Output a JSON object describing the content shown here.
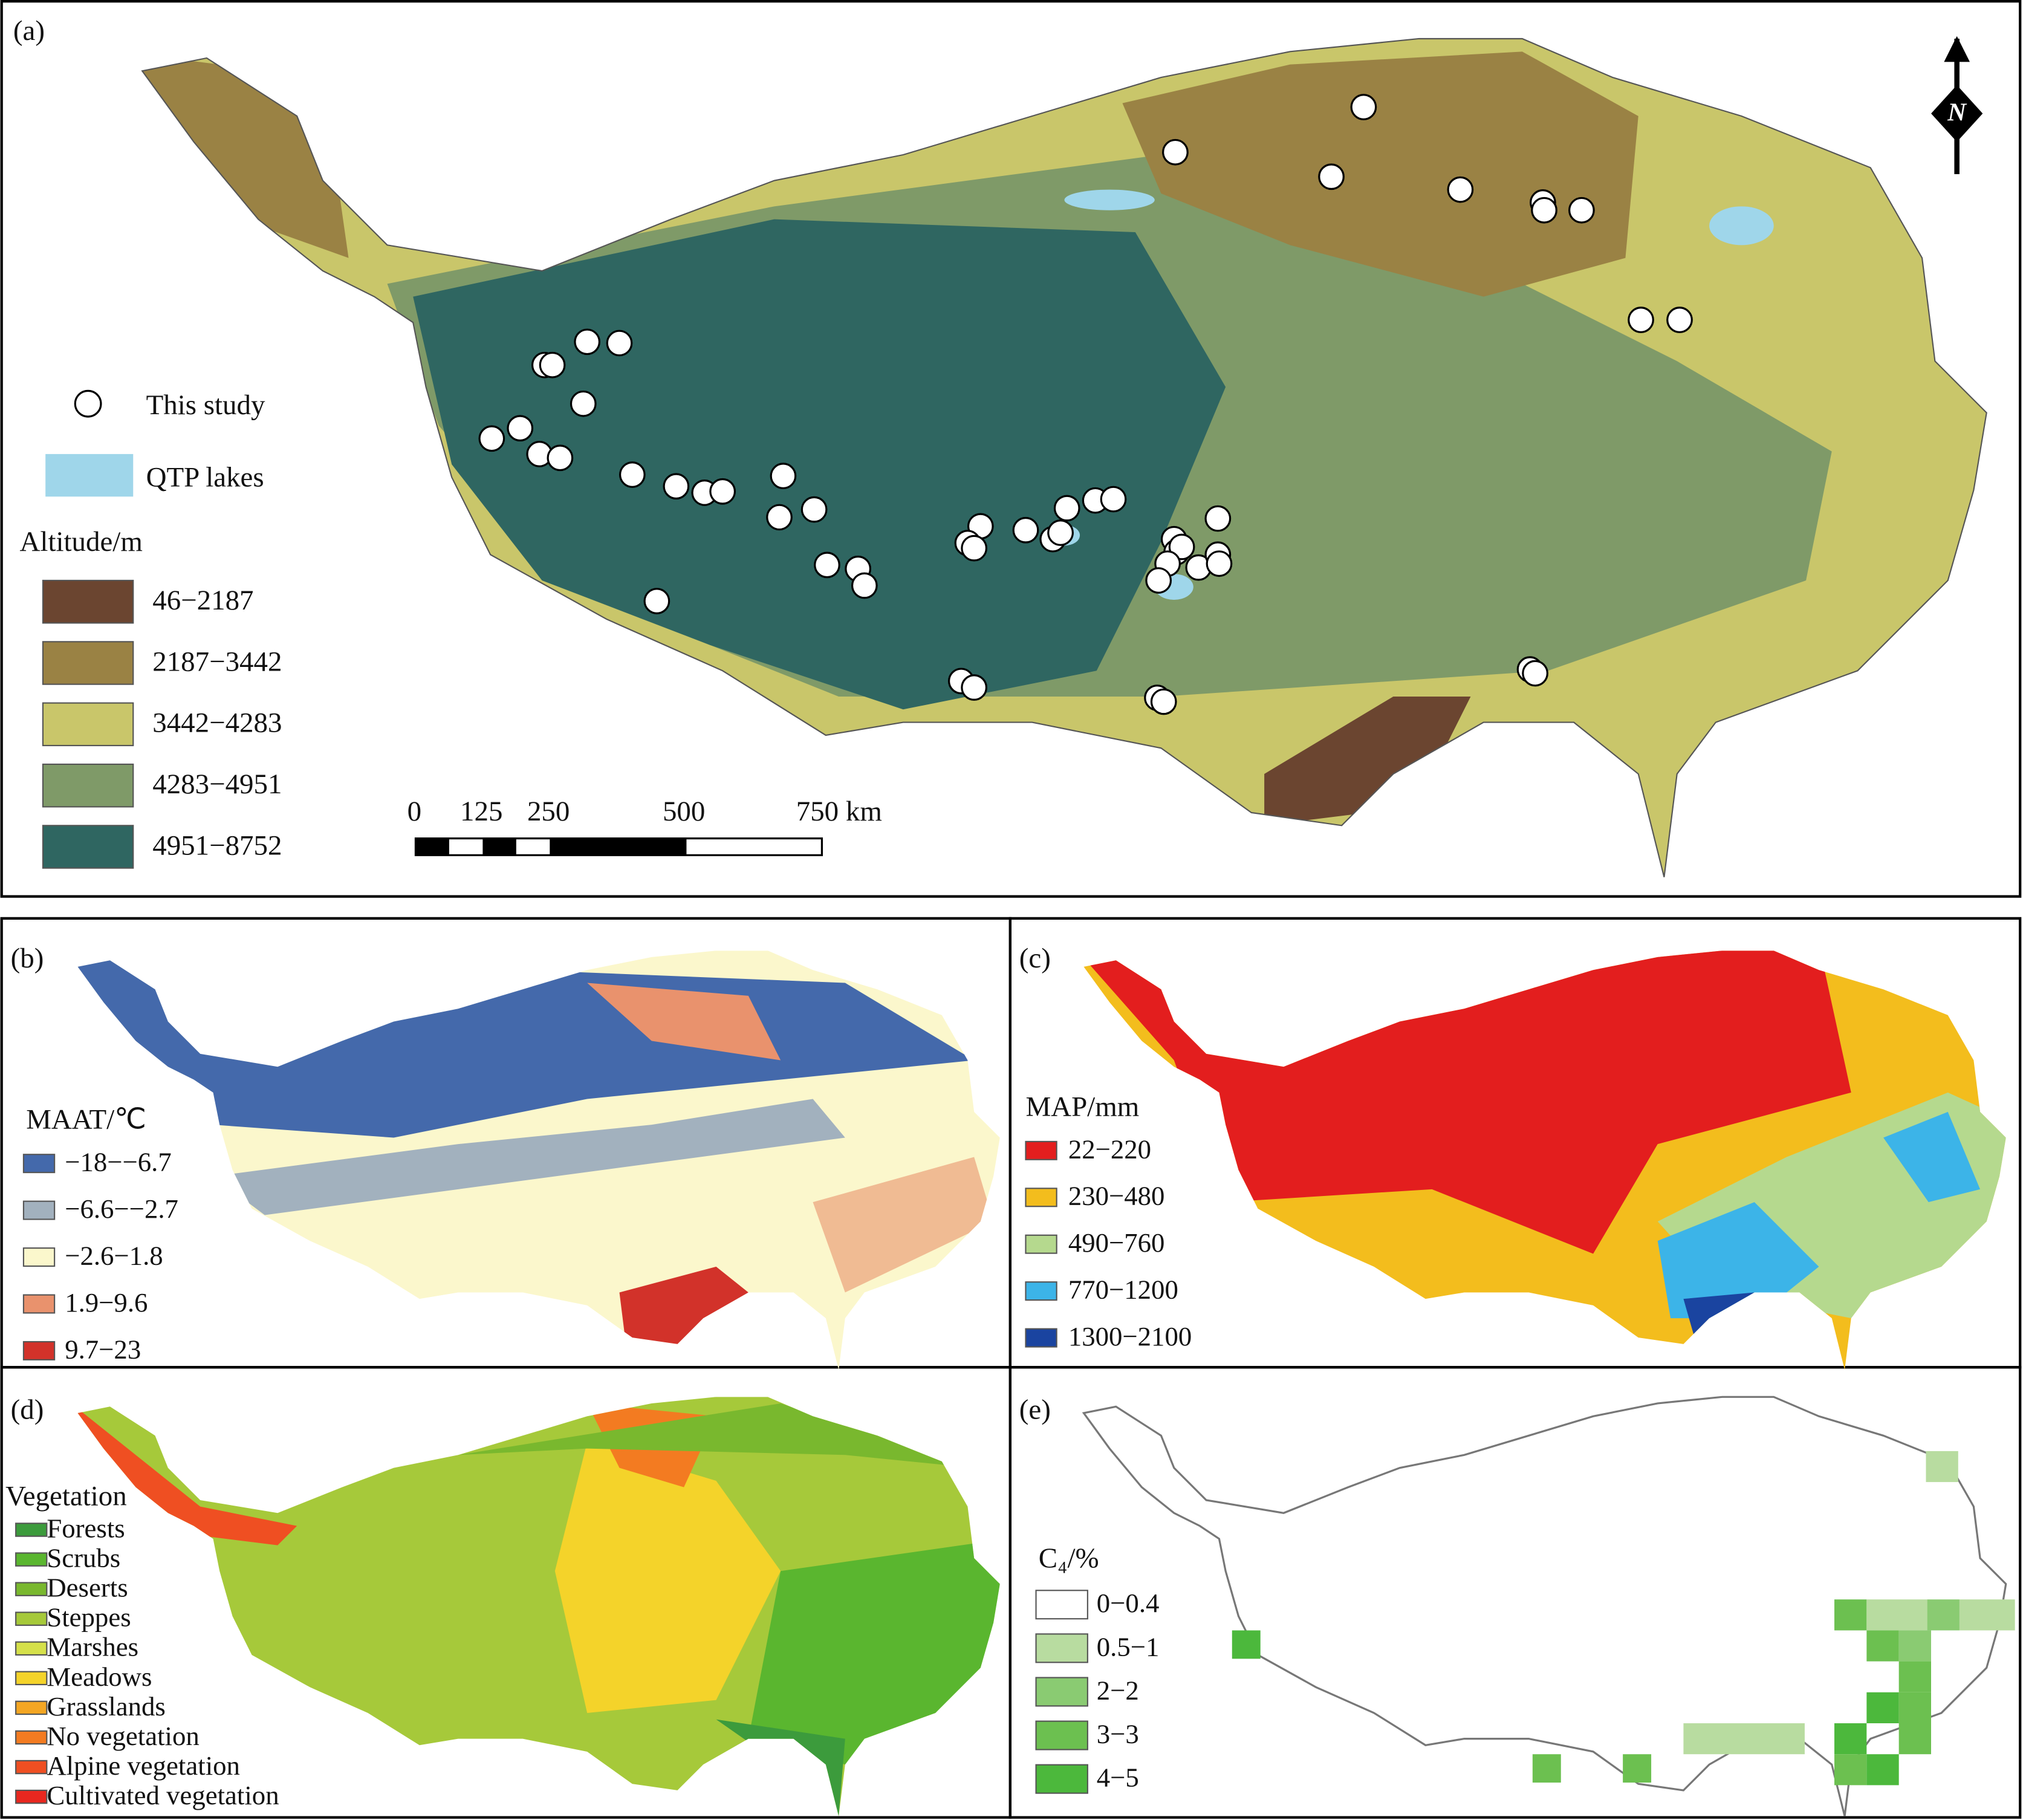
{
  "panel_a": {
    "label": "(a)",
    "study_label": "This study",
    "lakes_label": "QTP lakes",
    "legend_title": "Altitude/m",
    "classes": [
      {
        "label": "46−2187",
        "color": "#6b4530"
      },
      {
        "label": "2187−3442",
        "color": "#9a8244"
      },
      {
        "label": "3442−4283",
        "color": "#c9c66a"
      },
      {
        "label": "4283−4951",
        "color": "#7f9a68"
      },
      {
        "label": "4951−8752",
        "color": "#2f6661"
      }
    ],
    "scale_bar": [
      "0",
      "125",
      "250",
      "500",
      "750 km"
    ],
    "north": "N"
  },
  "panel_b": {
    "label": "(b)",
    "legend_title": "MAAT/℃",
    "classes": [
      {
        "label": "−18−−6.7",
        "color": "#4469ab"
      },
      {
        "label": "−6.6−−2.7",
        "color": "#a2b1be"
      },
      {
        "label": "−2.6−1.8",
        "color": "#fbf7cc"
      },
      {
        "label": "1.9−9.6",
        "color": "#e9926d"
      },
      {
        "label": "9.7−23",
        "color": "#d2322a"
      }
    ]
  },
  "panel_c": {
    "label": "(c)",
    "legend_title": "MAP/mm",
    "classes": [
      {
        "label": "22−220",
        "color": "#e31e1e"
      },
      {
        "label": "230−480",
        "color": "#f3bd1d"
      },
      {
        "label": "490−760",
        "color": "#b5d98e"
      },
      {
        "label": "770−1200",
        "color": "#3cb4e8"
      },
      {
        "label": "1300−2100",
        "color": "#1a44a0"
      }
    ]
  },
  "panel_d": {
    "label": "(d)",
    "legend_title": "Vegetation",
    "classes": [
      {
        "label": "Forests",
        "color": "#3c9b3c"
      },
      {
        "label": "Scrubs",
        "color": "#5ab62f"
      },
      {
        "label": "Deserts",
        "color": "#79b82e"
      },
      {
        "label": "Steppes",
        "color": "#a6c93a"
      },
      {
        "label": "Marshes",
        "color": "#d5e04a"
      },
      {
        "label": "Meadows",
        "color": "#f4d32a"
      },
      {
        "label": "Grasslands",
        "color": "#f4a623"
      },
      {
        "label": "No vegetation",
        "color": "#f37b21"
      },
      {
        "label": "Alpine vegetation",
        "color": "#ef4f22"
      },
      {
        "label": "Cultivated vegetation",
        "color": "#e8271f"
      }
    ]
  },
  "panel_e": {
    "label": "(e)",
    "legend_title": "C₄/%",
    "classes": [
      {
        "label": "0−0.4",
        "color": "#ffffff"
      },
      {
        "label": "0.5−1",
        "color": "#b8dca0"
      },
      {
        "label": "2−2",
        "color": "#8acb72"
      },
      {
        "label": "3−3",
        "color": "#6cc050"
      },
      {
        "label": "4−5",
        "color": "#4cb83c"
      }
    ]
  }
}
